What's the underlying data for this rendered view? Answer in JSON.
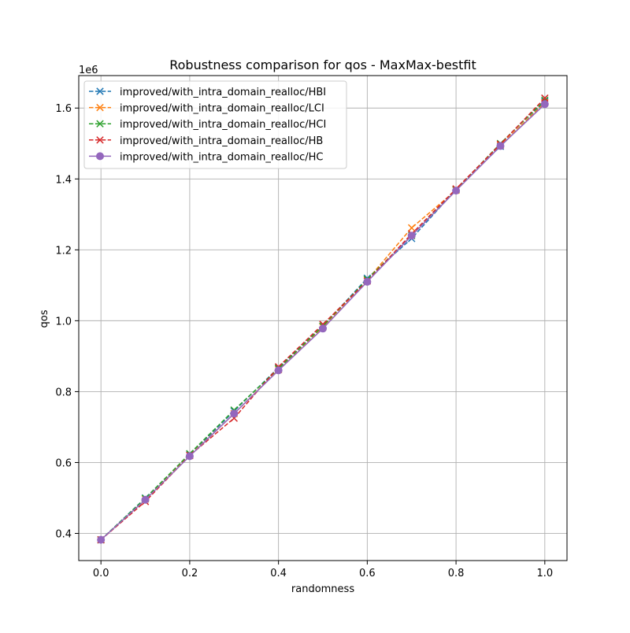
{
  "chart_data": {
    "type": "line",
    "title": "Robustness comparison for qos - MaxMax-bestfit",
    "xlabel": "randomness",
    "ylabel": "qos",
    "y_scale_label": "1e6",
    "xlim": [
      -0.05,
      1.05
    ],
    "ylim": [
      0.3234,
      1.6916
    ],
    "x_ticks": [
      0.0,
      0.2,
      0.4,
      0.6,
      0.8,
      1.0
    ],
    "x_tick_labels": [
      "0.0",
      "0.2",
      "0.4",
      "0.6",
      "0.8",
      "1.0"
    ],
    "y_ticks": [
      0.4,
      0.6,
      0.8,
      1.0,
      1.2,
      1.4,
      1.6
    ],
    "y_tick_labels": [
      "0.4",
      "0.6",
      "0.8",
      "1.0",
      "1.2",
      "1.4",
      "1.6"
    ],
    "grid": true,
    "legend_position": "top-left",
    "x": [
      0.0,
      0.1,
      0.2,
      0.3,
      0.4,
      0.5,
      0.6,
      0.7,
      0.8,
      0.9,
      1.0
    ],
    "series": [
      {
        "name": "improved/with_intra_domain_realloc/HBI",
        "color": "#1f77b4",
        "line_style": "dashed",
        "marker": "x",
        "values": [
          0.382,
          0.5,
          0.622,
          0.745,
          0.868,
          0.985,
          1.12,
          1.232,
          1.37,
          1.492,
          1.618
        ]
      },
      {
        "name": "improved/with_intra_domain_realloc/LCI",
        "color": "#ff7f0e",
        "line_style": "dashed",
        "marker": "x",
        "values": [
          0.382,
          0.497,
          0.62,
          0.738,
          0.862,
          0.982,
          1.115,
          1.262,
          1.368,
          1.495,
          1.615
        ]
      },
      {
        "name": "improved/with_intra_domain_realloc/HCI",
        "color": "#2ca02c",
        "line_style": "dashed",
        "marker": "x",
        "values": [
          0.382,
          0.499,
          0.625,
          0.748,
          0.865,
          0.985,
          1.117,
          1.24,
          1.37,
          1.5,
          1.622
        ]
      },
      {
        "name": "improved/with_intra_domain_realloc/HB",
        "color": "#d62728",
        "line_style": "dashed",
        "marker": "x",
        "values": [
          0.382,
          0.49,
          0.62,
          0.725,
          0.87,
          0.99,
          1.112,
          1.245,
          1.372,
          1.498,
          1.628
        ]
      },
      {
        "name": "improved/with_intra_domain_realloc/HC",
        "color": "#9467bd",
        "line_style": "solid",
        "marker": "o",
        "values": [
          0.382,
          0.495,
          0.618,
          0.738,
          0.86,
          0.978,
          1.11,
          1.24,
          1.367,
          1.493,
          1.611
        ]
      }
    ]
  }
}
